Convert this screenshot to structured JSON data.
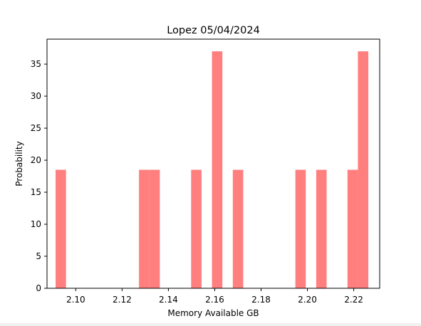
{
  "chart_data": {
    "type": "bar",
    "title": "Lopez 05/04/2024",
    "xlabel": "Memory Available GB",
    "ylabel": "Probability",
    "xlim": [
      2.0876,
      2.2312
    ],
    "ylim": [
      0,
      38.9
    ],
    "xticks": [
      2.1,
      2.12,
      2.14,
      2.16,
      2.18,
      2.2,
      2.22
    ],
    "xtick_labels": [
      "2.10",
      "2.12",
      "2.14",
      "2.16",
      "2.18",
      "2.20",
      "2.22"
    ],
    "yticks": [
      0,
      5,
      10,
      15,
      20,
      25,
      30,
      35
    ],
    "ytick_labels": [
      "0",
      "5",
      "10",
      "15",
      "20",
      "25",
      "30",
      "35"
    ],
    "grid": false,
    "legend": "none",
    "bar_color": "#ff7f7f",
    "bins": [
      {
        "x0": 2.0913,
        "x1": 2.0958,
        "value": 18.5
      },
      {
        "x0": 2.1273,
        "x1": 2.1318,
        "value": 18.5
      },
      {
        "x0": 2.1318,
        "x1": 2.1363,
        "value": 18.5
      },
      {
        "x0": 2.1498,
        "x1": 2.1543,
        "value": 18.5
      },
      {
        "x0": 2.1588,
        "x1": 2.1633,
        "value": 37.0
      },
      {
        "x0": 2.1678,
        "x1": 2.1723,
        "value": 18.5
      },
      {
        "x0": 2.1948,
        "x1": 2.1993,
        "value": 18.5
      },
      {
        "x0": 2.2038,
        "x1": 2.2083,
        "value": 18.5
      },
      {
        "x0": 2.2173,
        "x1": 2.2218,
        "value": 18.5
      },
      {
        "x0": 2.2218,
        "x1": 2.2263,
        "value": 37.0
      }
    ]
  }
}
